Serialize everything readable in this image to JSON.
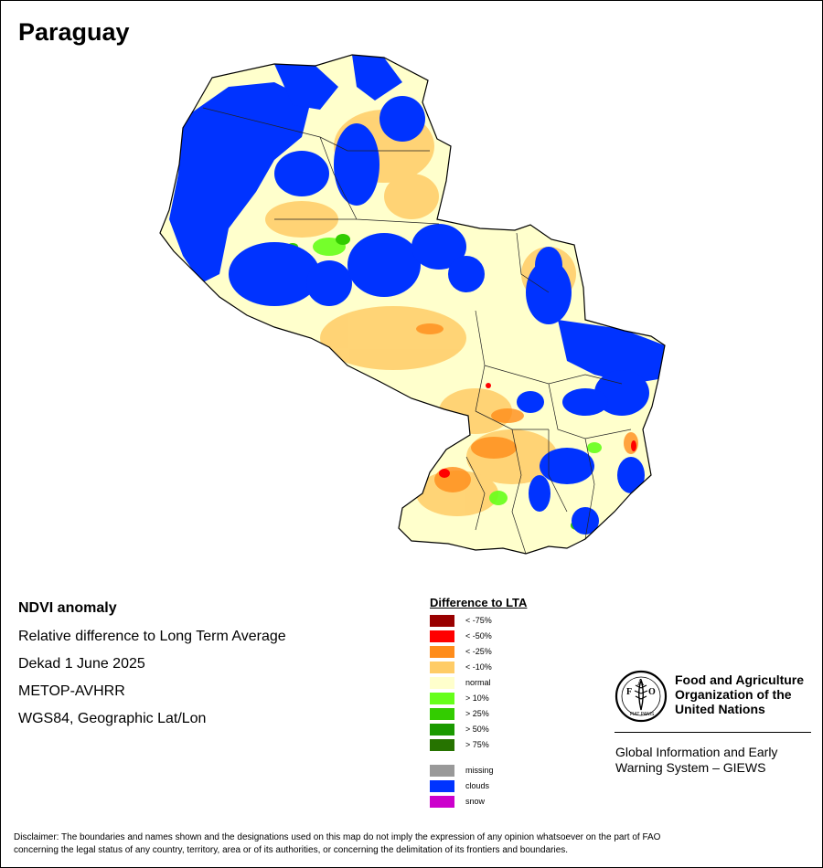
{
  "map": {
    "title": "Paraguay"
  },
  "info": {
    "title": "NDVI anomaly",
    "lines": [
      "Relative difference to Long Term Average",
      "Dekad 1 June 2025",
      "METOP-AVHRR",
      "WGS84, Geographic Lat/Lon"
    ]
  },
  "legend": {
    "title": "Difference to LTA",
    "items": [
      {
        "label": "< -75%",
        "color": "#990000"
      },
      {
        "label": "< -50%",
        "color": "#ff0000"
      },
      {
        "label": "< -25%",
        "color": "#ff8c1a"
      },
      {
        "label": "< -10%",
        "color": "#ffcc66"
      },
      {
        "label": "normal",
        "color": "#ffffcc"
      },
      {
        "label": "> 10%",
        "color": "#66ff1a"
      },
      {
        "label": "> 25%",
        "color": "#33cc00"
      },
      {
        "label": "> 50%",
        "color": "#1a9900"
      },
      {
        "label": "> 75%",
        "color": "#267300"
      },
      {
        "label": "missing",
        "color": "#999999"
      },
      {
        "label": "clouds",
        "color": "#0033ff"
      },
      {
        "label": "snow",
        "color": "#cc00cc"
      }
    ]
  },
  "org": {
    "fao_line1": "Food and Agriculture",
    "fao_line2": "Organization of the",
    "fao_line3": "United Nations",
    "logo_text": "FAO",
    "logo_motto": "FIAT PANIS",
    "giews_line1": "Global Information and Early",
    "giews_line2": "Warning System – GIEWS"
  },
  "disclaimer": {
    "line1": "Disclaimer: The boundaries and names shown and the designations used on this map do not imply the expression of any opinion whatsoever on the part of FAO",
    "line2": "concerning the legal status of any country, territory, area or of its authorities, or concerning the delimitation of its frontiers and boundaries."
  }
}
